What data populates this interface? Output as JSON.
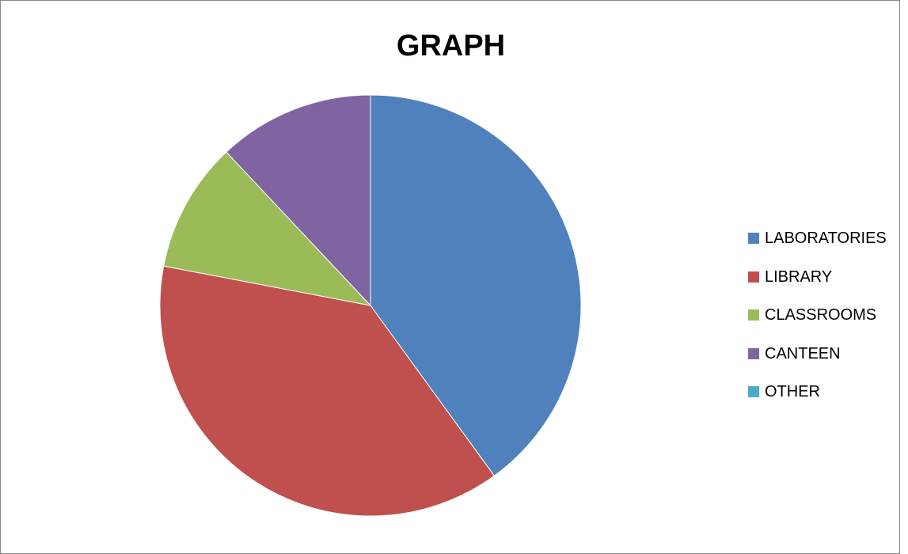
{
  "chart_data": {
    "type": "pie",
    "title": "GRAPH",
    "legend_position": "right",
    "series": [
      {
        "name": "LABORATORIES",
        "value": 40,
        "color": "#4F81BD"
      },
      {
        "name": "LIBRARY",
        "value": 38,
        "color": "#C0504D"
      },
      {
        "name": "CLASSROOMS",
        "value": 10,
        "color": "#9BBB59"
      },
      {
        "name": "CANTEEN",
        "value": 12,
        "color": "#8064A2"
      },
      {
        "name": "OTHER",
        "value": 0,
        "color": "#4BACC6"
      }
    ]
  }
}
